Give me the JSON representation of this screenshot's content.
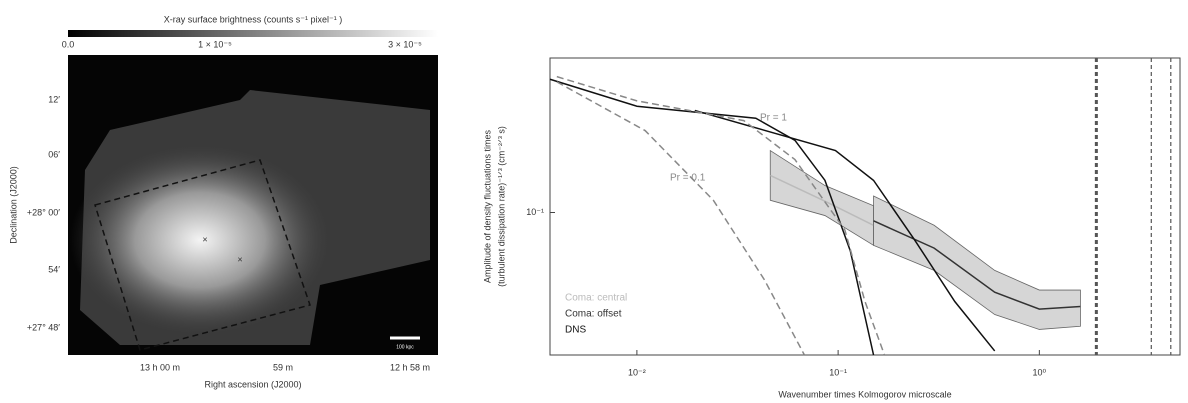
{
  "image_panel": {
    "colorbar_title": "X-ray surface brightness (counts s⁻¹ pixel⁻¹ )",
    "colorbar_labels": [
      "0.0",
      "1 × 10⁻⁵",
      "3 × 10⁻⁵"
    ],
    "y_labels": [
      "12′",
      "06′",
      "+28° 00′",
      "54′",
      "+27° 48′"
    ],
    "y_title": "Declination (J2000)",
    "x_labels": [
      "13 h 00 m",
      "59 m",
      "12 h 58 m"
    ],
    "x_title": "Right ascension (J2000)",
    "scale_bar": "100 kpc"
  },
  "chart_data": {
    "type": "line",
    "xlabel": "Wavenumber times Kolmogorov microscale",
    "ylabel": [
      "Amplitude of density fluctuations times",
      "(turbulent dissipation rate)⁻¹ᐟ³ (cm⁻²ᐟ³ s)"
    ],
    "log_x": true,
    "log_y": true,
    "xlim": [
      0.0037,
      5
    ],
    "ylim": [
      0.024,
      0.47
    ],
    "xticks": [
      {
        "value": 0.01,
        "label": "10⁻²"
      },
      {
        "value": 0.1,
        "label": "10⁻¹"
      },
      {
        "value": 1,
        "label": "10⁰"
      }
    ],
    "yticks": [
      {
        "value": 0.1,
        "label": "10⁻¹"
      }
    ],
    "series": [
      {
        "name": "Coma: central",
        "color": "#bbbbbb",
        "x": [
          0.046,
          0.086,
          0.15
        ],
        "values": [
          0.145,
          0.112,
          0.088
        ],
        "lower": [
          0.113,
          0.097,
          0.072
        ],
        "upper": [
          0.186,
          0.131,
          0.107
        ]
      },
      {
        "name": "Coma: offset",
        "color": "#333333",
        "x": [
          0.15,
          0.3,
          0.6,
          1.0,
          1.6
        ],
        "values": [
          0.092,
          0.07,
          0.045,
          0.038,
          0.039
        ],
        "lower": [
          0.072,
          0.056,
          0.036,
          0.031,
          0.032
        ],
        "upper": [
          0.118,
          0.088,
          0.056,
          0.046,
          0.046
        ]
      },
      {
        "name": "DNS",
        "color": "#111111",
        "x": [
          0.0037,
          0.01,
          0.039,
          0.061,
          0.086,
          0.115,
          0.15
        ],
        "values": [
          0.38,
          0.29,
          0.257,
          0.206,
          0.138,
          0.068,
          0.024
        ]
      },
      {
        "color": "#111111",
        "x": [
          0.0194,
          0.097,
          0.15,
          0.24,
          0.38,
          0.6
        ],
        "values": [
          0.278,
          0.186,
          0.138,
          0.076,
          0.041,
          0.025
        ]
      },
      {
        "color": "#888888",
        "dashed": true,
        "x": [
          0.004,
          0.01,
          0.034,
          0.061,
          0.108,
          0.136,
          0.17
        ],
        "values": [
          0.39,
          0.306,
          0.251,
          0.17,
          0.084,
          0.041,
          0.024
        ]
      },
      {
        "color": "#888888",
        "dashed": true,
        "x": [
          0.004,
          0.011,
          0.024,
          0.043,
          0.068
        ],
        "values": [
          0.37,
          0.227,
          0.113,
          0.051,
          0.024
        ]
      }
    ],
    "annotations": [
      "Pr = 1",
      "Pr = 0.1"
    ],
    "vlines": [
      1.92,
      3.6,
      4.5
    ]
  }
}
